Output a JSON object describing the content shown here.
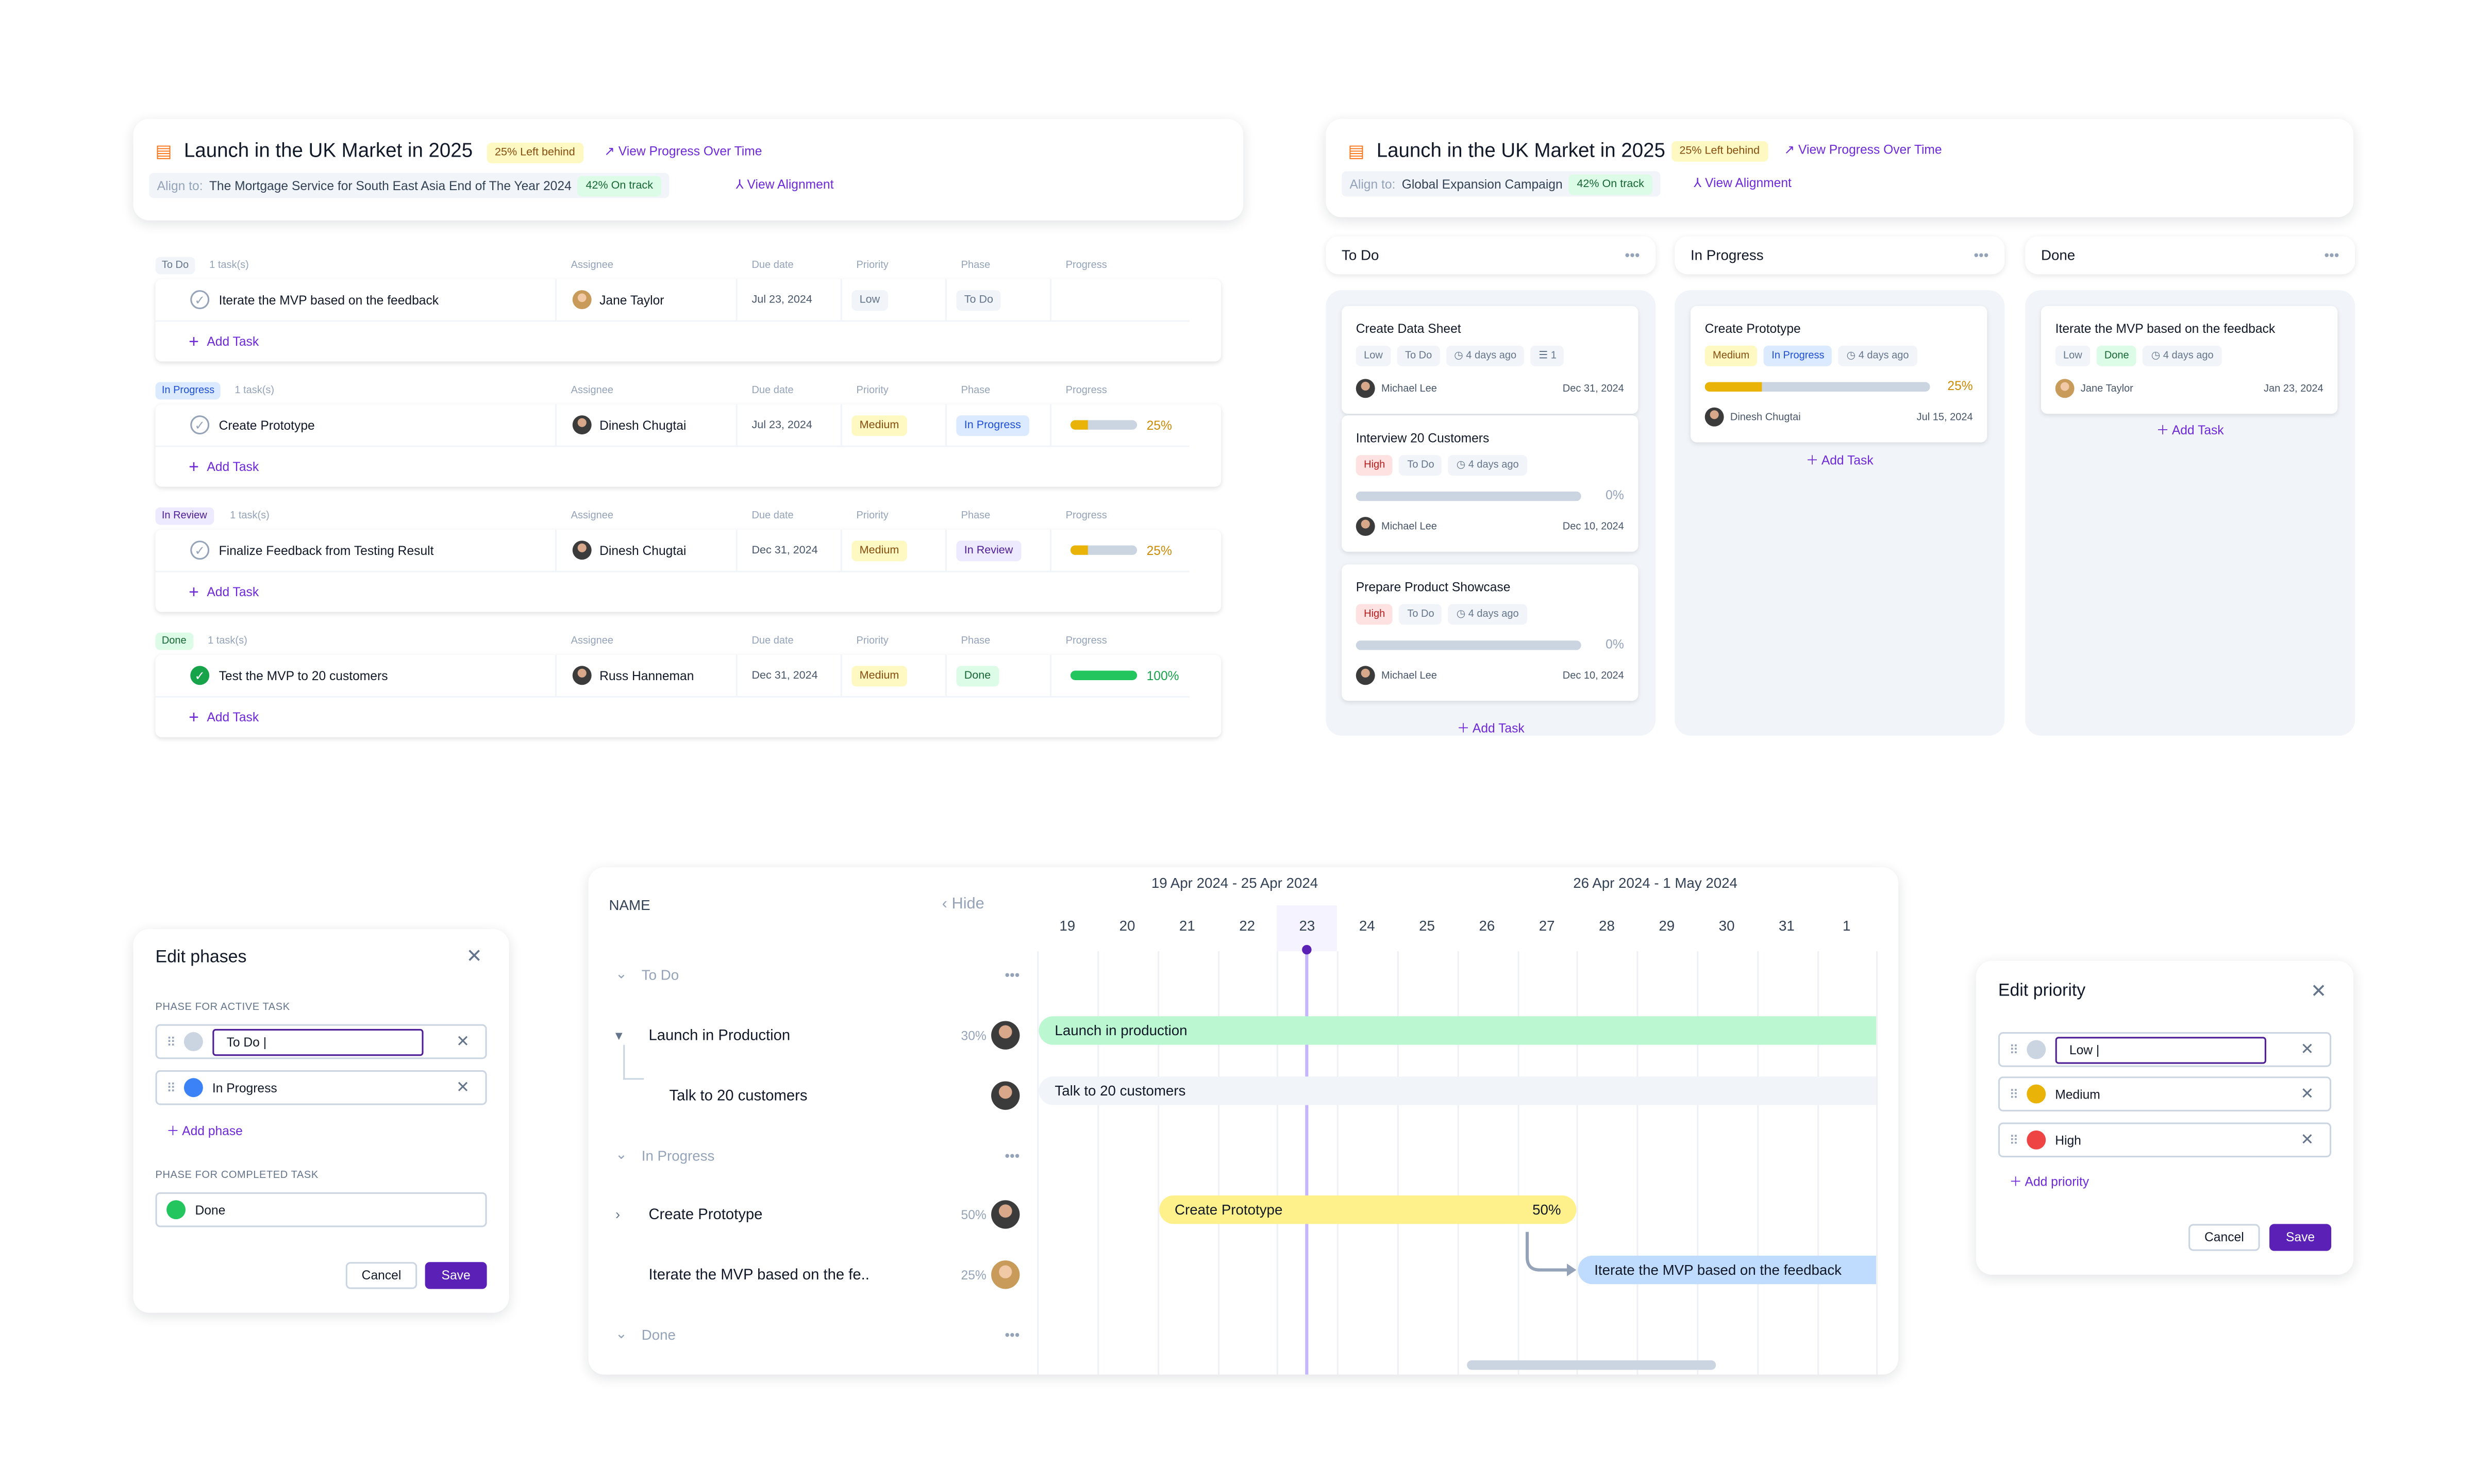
{
  "list_view": {
    "goal": {
      "title": "Launch in the UK Market in 2025",
      "status_badge": "25% Left behind",
      "progress_link": "View Progress Over Time",
      "align_prefix": "Align to:",
      "align_target": "The Mortgage Service for South East Asia End of The Year 2024",
      "align_badge": "42% On track",
      "alignment_link": "View Alignment"
    },
    "columns": {
      "assignee": "Assignee",
      "due": "Due date",
      "priority": "Priority",
      "phase": "Phase",
      "progress": "Progress"
    },
    "add_task": "Add Task",
    "groups": [
      {
        "label": "To Do",
        "count": "1 task(s)",
        "task": {
          "name": "Iterate the MVP based on the feedback",
          "assignee": "Jane Taylor",
          "due": "Jul 23, 2024",
          "priority": "Low",
          "phase": "To Do",
          "progress": null,
          "progress_label": "",
          "done": false
        }
      },
      {
        "label": "In Progress",
        "count": "1 task(s)",
        "task": {
          "name": "Create Prototype",
          "assignee": "Dinesh Chugtai",
          "due": "Jul 23, 2024",
          "priority": "Medium",
          "phase": "In Progress",
          "progress": 25,
          "progress_label": "25%",
          "done": false
        }
      },
      {
        "label": "In Review",
        "count": "1 task(s)",
        "task": {
          "name": "Finalize Feedback from Testing Result",
          "assignee": "Dinesh Chugtai",
          "due": "Dec 31, 2024",
          "priority": "Medium",
          "phase": "In Review",
          "progress": 25,
          "progress_label": "25%",
          "done": false
        }
      },
      {
        "label": "Done",
        "count": "1 task(s)",
        "task": {
          "name": "Test the MVP to 20 customers",
          "assignee": "Russ Hanneman",
          "due": "Dec 31, 2024",
          "priority": "Medium",
          "phase": "Done",
          "progress": 100,
          "progress_label": "100%",
          "done": true
        }
      }
    ]
  },
  "board_view": {
    "goal": {
      "title": "Launch in the UK Market in 2025",
      "status_badge": "25% Left behind",
      "progress_link": "View Progress Over Time",
      "align_prefix": "Align to:",
      "align_target": "Global Expansion Campaign",
      "align_badge": "42% On track",
      "alignment_link": "View Alignment"
    },
    "add_task": "Add Task",
    "columns": [
      {
        "title": "To Do",
        "cards": [
          {
            "title": "Create Data Sheet",
            "priority": "Low",
            "phase": "To Do",
            "updated": "4 days ago",
            "subtasks": "1",
            "progress": null,
            "progress_label": "",
            "assignee": "Michael Lee",
            "due": "Dec 31, 2024"
          },
          {
            "title": "Interview 20 Customers",
            "priority": "High",
            "phase": "To Do",
            "updated": "4 days ago",
            "progress": 0,
            "progress_label": "0%",
            "assignee": "Michael Lee",
            "due": "Dec 10, 2024"
          },
          {
            "title": "Prepare Product Showcase",
            "priority": "High",
            "phase": "To Do",
            "updated": "4 days ago",
            "progress": 0,
            "progress_label": "0%",
            "assignee": "Michael Lee",
            "due": "Dec 10, 2024"
          }
        ]
      },
      {
        "title": "In Progress",
        "cards": [
          {
            "title": "Create Prototype",
            "priority": "Medium",
            "phase": "In Progress",
            "updated": "4 days ago",
            "progress": 25,
            "progress_label": "25%",
            "assignee": "Dinesh Chugtai",
            "due": "Jul 15, 2024"
          }
        ]
      },
      {
        "title": "Done",
        "cards": [
          {
            "title": "Iterate the MVP based on the feedback",
            "priority": "Low",
            "phase": "Done",
            "updated": "4 days ago",
            "progress": null,
            "progress_label": "",
            "assignee": "Jane Taylor",
            "due": "Jan 23, 2024"
          }
        ]
      }
    ]
  },
  "edit_phases": {
    "title": "Edit phases",
    "active_label": "PHASE FOR ACTIVE TASK",
    "active": [
      {
        "name": "To Do |",
        "color": "#cbd5e1"
      },
      {
        "name": "In Progress",
        "color": "#3b82f6"
      }
    ],
    "add_phase": "Add phase",
    "completed_label": "PHASE FOR COMPLETED TASK",
    "completed": {
      "name": "Done",
      "color": "#22c55e"
    },
    "cancel": "Cancel",
    "save": "Save"
  },
  "edit_priority": {
    "title": "Edit priority",
    "items": [
      {
        "name": "Low |",
        "color": "#cbd5e1"
      },
      {
        "name": "Medium",
        "color": "#eab308"
      },
      {
        "name": "High",
        "color": "#ef4444"
      }
    ],
    "add_priority": "Add priority",
    "cancel": "Cancel",
    "save": "Save"
  },
  "gantt": {
    "name_header": "NAME",
    "hide": "Hide",
    "weeks": [
      "19 Apr 2024 - 25 Apr 2024",
      "26 Apr 2024 - 1 May 2024"
    ],
    "days": [
      "19",
      "20",
      "21",
      "22",
      "23",
      "24",
      "25",
      "26",
      "27",
      "28",
      "29",
      "30",
      "31",
      "1"
    ],
    "today": "23",
    "rows": [
      {
        "type": "group",
        "label": "To Do"
      },
      {
        "type": "task",
        "label": "Launch in Production",
        "percent": "30%",
        "bar": {
          "label": "Launch in production",
          "start": 0,
          "end": 14,
          "color": "#bbf7d0"
        }
      },
      {
        "type": "subtask",
        "label": "Talk to 20 customers",
        "percent": "",
        "bar": {
          "label": "Talk to 20 customers",
          "start": 0,
          "end": 14,
          "color": "#f1f5f9"
        }
      },
      {
        "type": "group",
        "label": "In Progress"
      },
      {
        "type": "task",
        "label": "Create Prototype",
        "percent": "50%",
        "bar": {
          "label": "Create Prototype",
          "value": "50%",
          "start": 2,
          "end": 9,
          "color": "#fef08a"
        }
      },
      {
        "type": "task",
        "label": "Iterate the MVP based on the fe..",
        "percent": "25%",
        "bar": {
          "label": "Iterate the MVP based on the feedback",
          "start": 9,
          "end": 14,
          "color": "#bfdbfe"
        }
      },
      {
        "type": "group",
        "label": "Done"
      }
    ]
  },
  "colors": {
    "accent": "#6d28d9",
    "progress_yellow": "#eab308",
    "progress_green": "#22c55e"
  }
}
